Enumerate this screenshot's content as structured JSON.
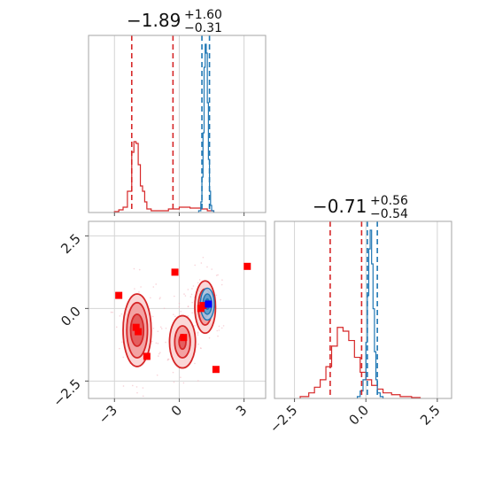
{
  "colors": {
    "red": "#d62728",
    "blue": "#1f77b4",
    "red_fill": "#f08080",
    "marker_red": "#ff0000",
    "marker_blue": "#0000ff",
    "frame": "#a6a6a6",
    "grid": "#d4d4d4"
  },
  "chart_data": [
    {
      "panel": "marginal-param-1",
      "type": "histogram",
      "title": {
        "main": "−1.89",
        "sup": "+1.60",
        "sub": "−0.31"
      },
      "xlim": [
        -4.2,
        4.0
      ],
      "grid": true,
      "series": [
        {
          "name": "",
          "color": "#d62728",
          "bins": [
            -3.0,
            -2.8,
            -2.6,
            -2.4,
            -2.2,
            -2.1,
            -2.0,
            -1.9,
            -1.8,
            -1.7,
            -1.6,
            -1.5,
            -1.3,
            -1.0,
            -0.5,
            0.0,
            0.5,
            1.0,
            1.3,
            1.6
          ],
          "counts": [
            0.005,
            0.015,
            0.03,
            0.12,
            0.34,
            0.4,
            0.39,
            0.27,
            0.15,
            0.12,
            0.06,
            0.02,
            0.01,
            0.01,
            0.02,
            0.03,
            0.025,
            0.02,
            0.01
          ]
        },
        {
          "name": "",
          "color": "#1f77b4",
          "bins": [
            0.9,
            1.0,
            1.05,
            1.1,
            1.15,
            1.2,
            1.25,
            1.3,
            1.35,
            1.4,
            1.45,
            1.5,
            1.6
          ],
          "counts": [
            0.01,
            0.06,
            0.2,
            0.45,
            0.82,
            0.95,
            0.9,
            0.62,
            0.3,
            0.12,
            0.04,
            0.01
          ]
        }
      ],
      "vlines_red": [
        -2.2,
        -0.29
      ],
      "vlines_blue": [
        1.05,
        1.4
      ]
    },
    {
      "panel": "marginal-param-2",
      "type": "histogram",
      "title": {
        "main": "−0.71",
        "sup": "+0.56",
        "sub": "−0.54"
      },
      "xlim": [
        -3.2,
        3.0
      ],
      "xticks": [
        -2.5,
        0.0,
        2.5
      ],
      "xtick_labels": [
        "−2.5",
        "0.0",
        "2.5"
      ],
      "grid": true,
      "series": [
        {
          "name": "",
          "color": "#d62728",
          "bins": [
            -2.3,
            -2.0,
            -1.8,
            -1.6,
            -1.4,
            -1.2,
            -1.0,
            -0.8,
            -0.6,
            -0.4,
            -0.2,
            0.0,
            0.2,
            0.4,
            0.6,
            0.9,
            1.2,
            1.6,
            1.9
          ],
          "counts": [
            0.01,
            0.03,
            0.06,
            0.1,
            0.17,
            0.28,
            0.38,
            0.36,
            0.31,
            0.22,
            0.14,
            0.1,
            0.07,
            0.05,
            0.03,
            0.02,
            0.01,
            0.005
          ]
        },
        {
          "name": "",
          "color": "#1f77b4",
          "bins": [
            -0.3,
            -0.2,
            -0.1,
            0.0,
            0.05,
            0.1,
            0.15,
            0.2,
            0.25,
            0.3,
            0.35,
            0.4,
            0.5,
            0.6
          ],
          "counts": [
            0.01,
            0.04,
            0.1,
            0.3,
            0.55,
            0.8,
            0.9,
            0.72,
            0.48,
            0.25,
            0.1,
            0.03,
            0.01
          ]
        }
      ],
      "vlines_red": [
        -1.25,
        -0.15
      ],
      "vlines_blue": [
        0.05,
        0.4
      ]
    },
    {
      "panel": "joint-param-1-vs-param-2",
      "type": "scatter",
      "xlim": [
        -4.2,
        4.0
      ],
      "ylim": [
        -3.1,
        3.0
      ],
      "xticks": [
        -3,
        0,
        3
      ],
      "xtick_labels": [
        "−3",
        "0",
        "3"
      ],
      "yticks": [
        -2.5,
        0.0,
        2.5
      ],
      "ytick_labels": [
        "−2.5",
        "0.0",
        "2.5"
      ],
      "grid": true,
      "red_markers": [
        {
          "x": -2.8,
          "y": 0.45
        },
        {
          "x": -2.0,
          "y": -0.65
        },
        {
          "x": -1.9,
          "y": -0.8
        },
        {
          "x": -1.5,
          "y": -1.65
        },
        {
          "x": -0.2,
          "y": 1.25
        },
        {
          "x": 0.2,
          "y": -1.0
        },
        {
          "x": 1.0,
          "y": 0.0
        },
        {
          "x": 1.1,
          "y": 0.1
        },
        {
          "x": 1.7,
          "y": -2.1
        },
        {
          "x": 3.15,
          "y": 1.45
        }
      ],
      "blue_markers": [
        {
          "x": 1.35,
          "y": 0.15
        }
      ],
      "red_clusters": [
        {
          "cx": -1.95,
          "cy": -0.75,
          "levels": [
            [
              0.65,
              1.25
            ],
            [
              0.48,
              0.95
            ],
            [
              0.3,
              0.55
            ]
          ]
        },
        {
          "cx": 0.15,
          "cy": -1.15,
          "levels": [
            [
              0.6,
              0.9
            ],
            [
              0.36,
              0.55
            ],
            [
              0.16,
              0.25
            ]
          ]
        },
        {
          "cx": 1.2,
          "cy": 0.05,
          "levels": [
            [
              0.48,
              0.9
            ],
            [
              0.32,
              0.62
            ],
            [
              0.18,
              0.35
            ]
          ]
        }
      ],
      "blue_cluster": {
        "cx": 1.3,
        "cy": 0.15,
        "levels": [
          [
            0.32,
            0.55
          ],
          [
            0.2,
            0.35
          ],
          [
            0.1,
            0.18
          ]
        ]
      }
    }
  ]
}
